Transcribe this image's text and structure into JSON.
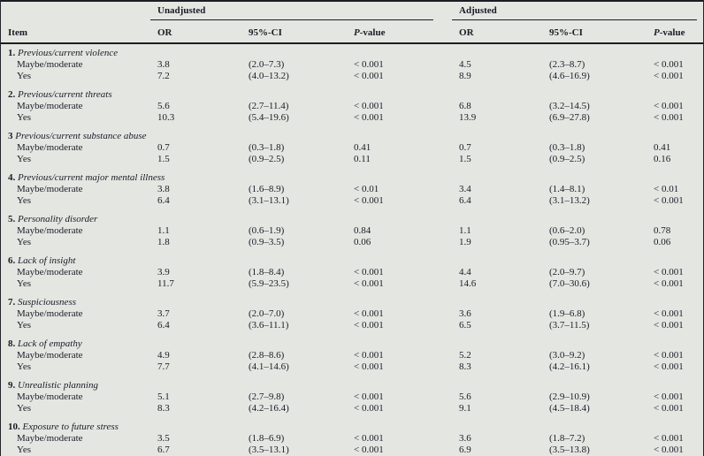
{
  "colors": {
    "background": "#e4e6e2",
    "text": "#1b1b26",
    "rule": "#1c1c22"
  },
  "table": {
    "item_header": "Item",
    "groups": [
      {
        "label": "Unadjusted"
      },
      {
        "label": "Adjusted"
      }
    ],
    "sub_headers": {
      "or": "OR",
      "ci": "95%-CI",
      "p_italic": "P",
      "p_rest": "-value"
    },
    "items": [
      {
        "number": "1.",
        "label": "Previous/current violence",
        "rows": [
          {
            "level": "Maybe/moderate",
            "u_or": "3.8",
            "u_ci": "(2.0–7.3)",
            "u_p": "< 0.001",
            "a_or": "4.5",
            "a_ci": "(2.3–8.7)",
            "a_p": "< 0.001"
          },
          {
            "level": "Yes",
            "u_or": "7.2",
            "u_ci": "(4.0–13.2)",
            "u_p": "< 0.001",
            "a_or": "8.9",
            "a_ci": "(4.6–16.9)",
            "a_p": "< 0.001"
          }
        ]
      },
      {
        "number": "2.",
        "label": "Previous/current threats",
        "rows": [
          {
            "level": "Maybe/moderate",
            "u_or": "5.6",
            "u_ci": "(2.7–11.4)",
            "u_p": "< 0.001",
            "a_or": "6.8",
            "a_ci": "(3.2–14.5)",
            "a_p": "< 0.001"
          },
          {
            "level": "Yes",
            "u_or": "10.3",
            "u_ci": "(5.4–19.6)",
            "u_p": "< 0.001",
            "a_or": "13.9",
            "a_ci": "(6.9–27.8)",
            "a_p": "< 0.001"
          }
        ]
      },
      {
        "number": "3",
        "label": "Previous/current substance abuse",
        "rows": [
          {
            "level": "Maybe/moderate",
            "u_or": "0.7",
            "u_ci": "(0.3–1.8)",
            "u_p": "0.41",
            "a_or": "0.7",
            "a_ci": "(0.3–1.8)",
            "a_p": "0.41"
          },
          {
            "level": "Yes",
            "u_or": "1.5",
            "u_ci": "(0.9–2.5)",
            "u_p": "0.11",
            "a_or": "1.5",
            "a_ci": "(0.9–2.5)",
            "a_p": "0.16"
          }
        ]
      },
      {
        "number": "4.",
        "label": "Previous/current major mental illness",
        "rows": [
          {
            "level": "Maybe/moderate",
            "u_or": "3.8",
            "u_ci": "(1.6–8.9)",
            "u_p": "< 0.01",
            "a_or": "3.4",
            "a_ci": "(1.4–8.1)",
            "a_p": "< 0.01"
          },
          {
            "level": "Yes",
            "u_or": "6.4",
            "u_ci": "(3.1–13.1)",
            "u_p": "< 0.001",
            "a_or": "6.4",
            "a_ci": "(3.1–13.2)",
            "a_p": "< 0.001"
          }
        ]
      },
      {
        "number": "5.",
        "label": "Personality disorder",
        "rows": [
          {
            "level": "Maybe/moderate",
            "u_or": "1.1",
            "u_ci": "(0.6–1.9)",
            "u_p": "0.84",
            "a_or": "1.1",
            "a_ci": "(0.6–2.0)",
            "a_p": "0.78"
          },
          {
            "level": "Yes",
            "u_or": "1.8",
            "u_ci": "(0.9–3.5)",
            "u_p": "0.06",
            "a_or": "1.9",
            "a_ci": "(0.95–3.7)",
            "a_p": "0.06"
          }
        ]
      },
      {
        "number": "6.",
        "label": "Lack of insight",
        "rows": [
          {
            "level": "Maybe/moderate",
            "u_or": "3.9",
            "u_ci": "(1.8–8.4)",
            "u_p": "< 0.001",
            "a_or": "4.4",
            "a_ci": "(2.0–9.7)",
            "a_p": "< 0.001"
          },
          {
            "level": "Yes",
            "u_or": "11.7",
            "u_ci": "(5.9–23.5)",
            "u_p": "< 0.001",
            "a_or": "14.6",
            "a_ci": "(7.0–30.6)",
            "a_p": "< 0.001"
          }
        ]
      },
      {
        "number": "7.",
        "label": "Suspiciousness",
        "rows": [
          {
            "level": "Maybe/moderate",
            "u_or": "3.7",
            "u_ci": "(2.0–7.0)",
            "u_p": "< 0.001",
            "a_or": "3.6",
            "a_ci": "(1.9–6.8)",
            "a_p": "< 0.001"
          },
          {
            "level": "Yes",
            "u_or": "6.4",
            "u_ci": "(3.6–11.1)",
            "u_p": "< 0.001",
            "a_or": "6.5",
            "a_ci": "(3.7–11.5)",
            "a_p": "< 0.001"
          }
        ]
      },
      {
        "number": "8.",
        "label": "Lack of empathy",
        "rows": [
          {
            "level": "Maybe/moderate",
            "u_or": "4.9",
            "u_ci": "(2.8–8.6)",
            "u_p": "< 0.001",
            "a_or": "5.2",
            "a_ci": "(3.0–9.2)",
            "a_p": "< 0.001"
          },
          {
            "level": "Yes",
            "u_or": "7.7",
            "u_ci": "(4.1–14.6)",
            "u_p": "< 0.001",
            "a_or": "8.3",
            "a_ci": "(4.2–16.1)",
            "a_p": "< 0.001"
          }
        ]
      },
      {
        "number": "9.",
        "label": "Unrealistic planning",
        "rows": [
          {
            "level": "Maybe/moderate",
            "u_or": "5.1",
            "u_ci": "(2.7–9.8)",
            "u_p": "< 0.001",
            "a_or": "5.6",
            "a_ci": "(2.9–10.9)",
            "a_p": "< 0.001"
          },
          {
            "level": "Yes",
            "u_or": "8.3",
            "u_ci": "(4.2–16.4)",
            "u_p": "< 0.001",
            "a_or": "9.1",
            "a_ci": "(4.5–18.4)",
            "a_p": "< 0.001"
          }
        ]
      },
      {
        "number": "10.",
        "label": "Exposure to future stress",
        "rows": [
          {
            "level": "Maybe/moderate",
            "u_or": "3.5",
            "u_ci": "(1.8–6.9)",
            "u_p": "< 0.001",
            "a_or": "3.6",
            "a_ci": "(1.8–7.2)",
            "a_p": "< 0.001"
          },
          {
            "level": "Yes",
            "u_or": "6.7",
            "u_ci": "(3.5–13.1)",
            "u_p": "< 0.001",
            "a_or": "6.9",
            "a_ci": "(3.5–13.8)",
            "a_p": "< 0.001"
          }
        ]
      }
    ]
  }
}
